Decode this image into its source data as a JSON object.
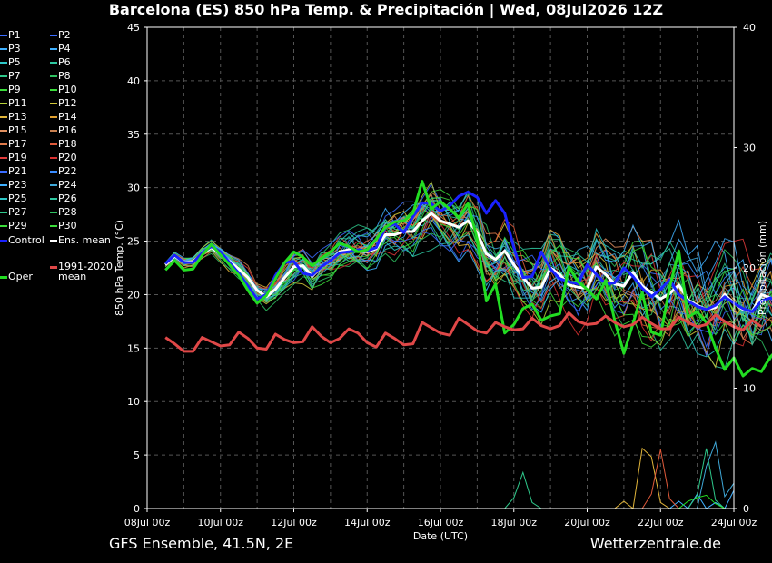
{
  "title": "Barcelona  (ES)  850 hPa Temp. & Precipitación | Wed, 08Jul2026 12Z",
  "footer": {
    "model": "GFS Ensemble, 41.5N, 2E",
    "site": "Wetterzentrale.de"
  },
  "legend": {
    "members": [
      {
        "label": "P1",
        "color": "#3a6cff"
      },
      {
        "label": "P2",
        "color": "#3a6cff"
      },
      {
        "label": "P3",
        "color": "#3fb0ff"
      },
      {
        "label": "P4",
        "color": "#3fb0ff"
      },
      {
        "label": "P5",
        "color": "#2ec7c7"
      },
      {
        "label": "P6",
        "color": "#2ec7a0"
      },
      {
        "label": "P7",
        "color": "#2ec78a"
      },
      {
        "label": "P8",
        "color": "#2ec060"
      },
      {
        "label": "P9",
        "color": "#3adc3a"
      },
      {
        "label": "P10",
        "color": "#3adc3a"
      },
      {
        "label": "P11",
        "color": "#b8d23a"
      },
      {
        "label": "P12",
        "color": "#d2c83a"
      },
      {
        "label": "P13",
        "color": "#e0b43a"
      },
      {
        "label": "P14",
        "color": "#e0a030"
      },
      {
        "label": "P15",
        "color": "#e09060"
      },
      {
        "label": "P16",
        "color": "#c88050"
      },
      {
        "label": "P17",
        "color": "#e07a4a"
      },
      {
        "label": "P18",
        "color": "#e05a3a"
      },
      {
        "label": "P19",
        "color": "#e03a3a"
      },
      {
        "label": "P20",
        "color": "#d83030"
      },
      {
        "label": "P21",
        "color": "#3a6cff"
      },
      {
        "label": "P22",
        "color": "#3a8cff"
      },
      {
        "label": "P23",
        "color": "#3fb0ff"
      },
      {
        "label": "P24",
        "color": "#3fa8d8"
      },
      {
        "label": "P25",
        "color": "#2ec7c7"
      },
      {
        "label": "P26",
        "color": "#2ec7a0"
      },
      {
        "label": "P27",
        "color": "#2ec78a"
      },
      {
        "label": "P28",
        "color": "#2ec060"
      },
      {
        "label": "P29",
        "color": "#3adc3a"
      },
      {
        "label": "P30",
        "color": "#3adc3a"
      }
    ],
    "control": {
      "label": "Control",
      "color": "#1a22ff"
    },
    "ens_mean": {
      "label": "Ens. mean",
      "color": "#ffffff"
    },
    "oper": {
      "label": "Oper",
      "color": "#22dd22"
    },
    "clim": {
      "label_line1": "1991-2020",
      "label_line2": "mean",
      "color": "#e04848"
    }
  },
  "chart_data": {
    "type": "line",
    "title": "Barcelona  (ES)  850 hPa Temp. & Precipitación | Wed, 08Jul2026 12Z",
    "xlabel": "Date (UTC)",
    "ylabel": "850 hPa Temp. (°C)",
    "y2label": "Precipitación (mm)",
    "x_ticks": [
      "08Jul 00z",
      "10Jul 00z",
      "12Jul 00z",
      "14Jul 00z",
      "16Jul 00z",
      "18Jul 00z",
      "20Jul 00z",
      "22Jul 00z",
      "24Jul 00z"
    ],
    "x_start_hours": 0,
    "x_end_hours": 384,
    "x_step_hours": 6,
    "x_first_hour": 12,
    "ylim": [
      0,
      45
    ],
    "y_ticks": [
      0,
      5,
      10,
      15,
      20,
      25,
      30,
      35,
      40,
      45
    ],
    "y2lim": [
      0,
      40
    ],
    "y2_ticks": [
      0,
      10,
      20,
      30,
      40
    ],
    "grid": true,
    "series": [
      {
        "name": "Ens. mean",
        "color": "#ffffff",
        "values": [
          22.8,
          23.6,
          23.0,
          23.1,
          23.8,
          24.4,
          23.8,
          23.1,
          22.4,
          21.6,
          20.4,
          19.8,
          20.5,
          21.6,
          22.6,
          22.7,
          21.7,
          22.6,
          23.2,
          24.0,
          24.2,
          24.1,
          24.0,
          24.3,
          25.6,
          25.6,
          25.9,
          25.9,
          26.9,
          27.6,
          26.9,
          26.6,
          26.3,
          26.9,
          25.8,
          23.8,
          23.3,
          24.1,
          22.8,
          21.6,
          20.6,
          20.7,
          22.5,
          21.9,
          20.9,
          20.7,
          20.6,
          22.6,
          21.9,
          21.0,
          20.8,
          22.1,
          20.8,
          20.2,
          19.6,
          20.1,
          20.9,
          19.5,
          19.0,
          18.6,
          18.8,
          20.0,
          19.2,
          18.6,
          18.4,
          20.0,
          19.7,
          19.0,
          19.8,
          21.0,
          20.6,
          19.7,
          20.1
        ]
      },
      {
        "name": "Control",
        "color": "#1a22ff",
        "values": [
          22.9,
          23.7,
          23.0,
          23.0,
          23.9,
          24.5,
          24.0,
          23.0,
          22.0,
          20.8,
          19.6,
          20.0,
          21.8,
          23.0,
          23.1,
          22.0,
          21.8,
          22.6,
          23.2,
          23.9,
          24.0,
          24.2,
          24.1,
          24.4,
          26.3,
          26.6,
          25.8,
          27.3,
          28.6,
          28.5,
          27.8,
          28.3,
          29.2,
          29.6,
          29.1,
          27.6,
          28.8,
          27.6,
          24.4,
          21.6,
          21.7,
          24.0,
          22.4,
          21.5,
          21.2,
          21.0,
          22.8,
          21.9,
          21.0,
          21.1,
          22.5,
          21.7,
          20.6,
          19.8,
          20.5,
          21.4,
          20.0,
          19.4,
          18.9,
          18.6,
          19.0,
          19.8,
          19.2,
          18.7,
          18.4,
          19.4,
          19.7,
          19.1,
          19.9,
          21.5,
          22.6,
          23.8,
          25.0
        ]
      },
      {
        "name": "Oper",
        "color": "#22dd22",
        "values": [
          22.3,
          23.2,
          22.3,
          22.4,
          23.7,
          24.7,
          23.7,
          22.8,
          21.8,
          20.4,
          19.2,
          19.9,
          21.5,
          23.0,
          24.0,
          23.5,
          22.7,
          23.4,
          24.0,
          24.8,
          24.5,
          24.0,
          24.2,
          25.2,
          26.3,
          26.8,
          26.9,
          27.6,
          30.6,
          28.0,
          28.7,
          28.0,
          27.2,
          28.5,
          25.2,
          19.4,
          21.0,
          16.4,
          17.2,
          18.7,
          19.1,
          17.6,
          18.0,
          18.2,
          22.6,
          21.2,
          20.5,
          19.6,
          21.3,
          17.6,
          14.5,
          17.3,
          20.2,
          16.5,
          16.2,
          20.7,
          24.1,
          17.9,
          18.4,
          17.4,
          15.0,
          13.0,
          14.1,
          12.4,
          13.1,
          12.8,
          14.2,
          15.1,
          15.6
        ]
      },
      {
        "name": "1991-2020 mean",
        "color": "#e04848",
        "values": [
          16.0,
          15.4,
          14.7,
          14.7,
          16.0,
          15.6,
          15.2,
          15.3,
          16.5,
          15.9,
          15.0,
          14.9,
          16.3,
          15.8,
          15.5,
          15.6,
          17.0,
          16.1,
          15.5,
          15.9,
          16.8,
          16.4,
          15.5,
          15.1,
          16.4,
          15.9,
          15.3,
          15.4,
          17.4,
          16.9,
          16.4,
          16.2,
          17.8,
          17.2,
          16.6,
          16.4,
          17.4,
          17.0,
          16.7,
          16.8,
          17.8,
          17.1,
          16.8,
          17.1,
          18.3,
          17.5,
          17.2,
          17.3,
          18.0,
          17.4,
          17.0,
          17.2,
          17.9,
          17.3,
          16.8,
          16.8,
          17.9,
          17.4,
          17.0,
          17.2,
          18.1,
          17.5,
          17.0,
          16.7,
          17.6,
          17.0
        ]
      }
    ],
    "precip_series": [
      {
        "name": "P3",
        "color": "#3fb0ff",
        "nonzero": [
          [
            22.5,
            0.6
          ],
          [
            23,
            1.2
          ],
          [
            23.5,
            0.5
          ],
          [
            24,
            1.5
          ]
        ]
      },
      {
        "name": "P7",
        "color": "#2ec78a",
        "nonzero": [
          [
            18,
            0.9
          ],
          [
            18.25,
            3.0
          ],
          [
            18.5,
            0.5
          ],
          [
            23,
            1.1
          ],
          [
            23.25,
            5.0
          ],
          [
            23.5,
            0.7
          ]
        ]
      },
      {
        "name": "P13",
        "color": "#e0b43a",
        "nonzero": [
          [
            21,
            0.6
          ],
          [
            21.5,
            5.0
          ],
          [
            21.75,
            4.3
          ],
          [
            22,
            0.5
          ]
        ]
      },
      {
        "name": "P18",
        "color": "#e05a3a",
        "nonzero": [
          [
            21.75,
            1.2
          ],
          [
            22,
            4.9
          ],
          [
            22.25,
            0.8
          ]
        ]
      },
      {
        "name": "P24",
        "color": "#3fa8d8",
        "nonzero": [
          [
            23.25,
            3.5
          ],
          [
            23.5,
            5.5
          ],
          [
            23.75,
            1.0
          ],
          [
            24,
            2.1
          ],
          [
            24.25,
            0.5
          ]
        ]
      },
      {
        "name": "Oper",
        "color": "#22dd22",
        "nonzero": [
          [
            22.75,
            0.6
          ],
          [
            23,
            0.9
          ],
          [
            23.25,
            1.1
          ],
          [
            23.5,
            0.4
          ]
        ]
      }
    ]
  }
}
